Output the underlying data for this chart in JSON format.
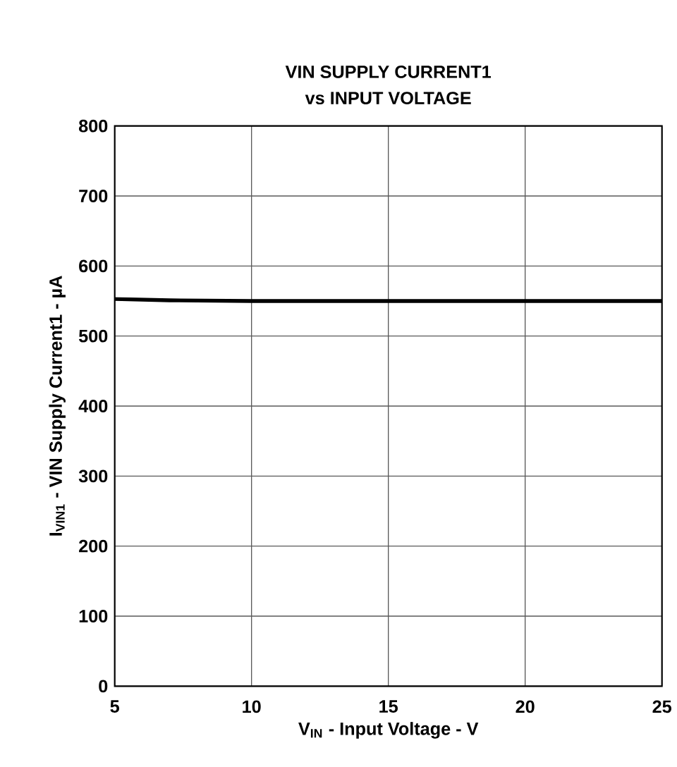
{
  "chart_data": {
    "type": "line",
    "title": "VIN SUPPLY CURRENT1 vs INPUT VOLTAGE",
    "xlabel": "V$_{IN}$ - Input Voltage - V",
    "ylabel": "I$_{VIN1}$ - VIN Supply Current1 - µA",
    "x": [
      5,
      7,
      10,
      15,
      20,
      25
    ],
    "series": [
      {
        "color": "#000000",
        "values": [
          553,
          551,
          550,
          550,
          550,
          550
        ]
      }
    ],
    "xlim": [
      5,
      25
    ],
    "xticks": [
      5,
      10,
      15,
      20,
      25
    ],
    "ylim": [
      0,
      800
    ],
    "yticks": [
      0,
      100,
      200,
      300,
      400,
      500,
      600,
      700,
      800
    ],
    "grid": true,
    "marker": "none",
    "line_style": "solid"
  }
}
